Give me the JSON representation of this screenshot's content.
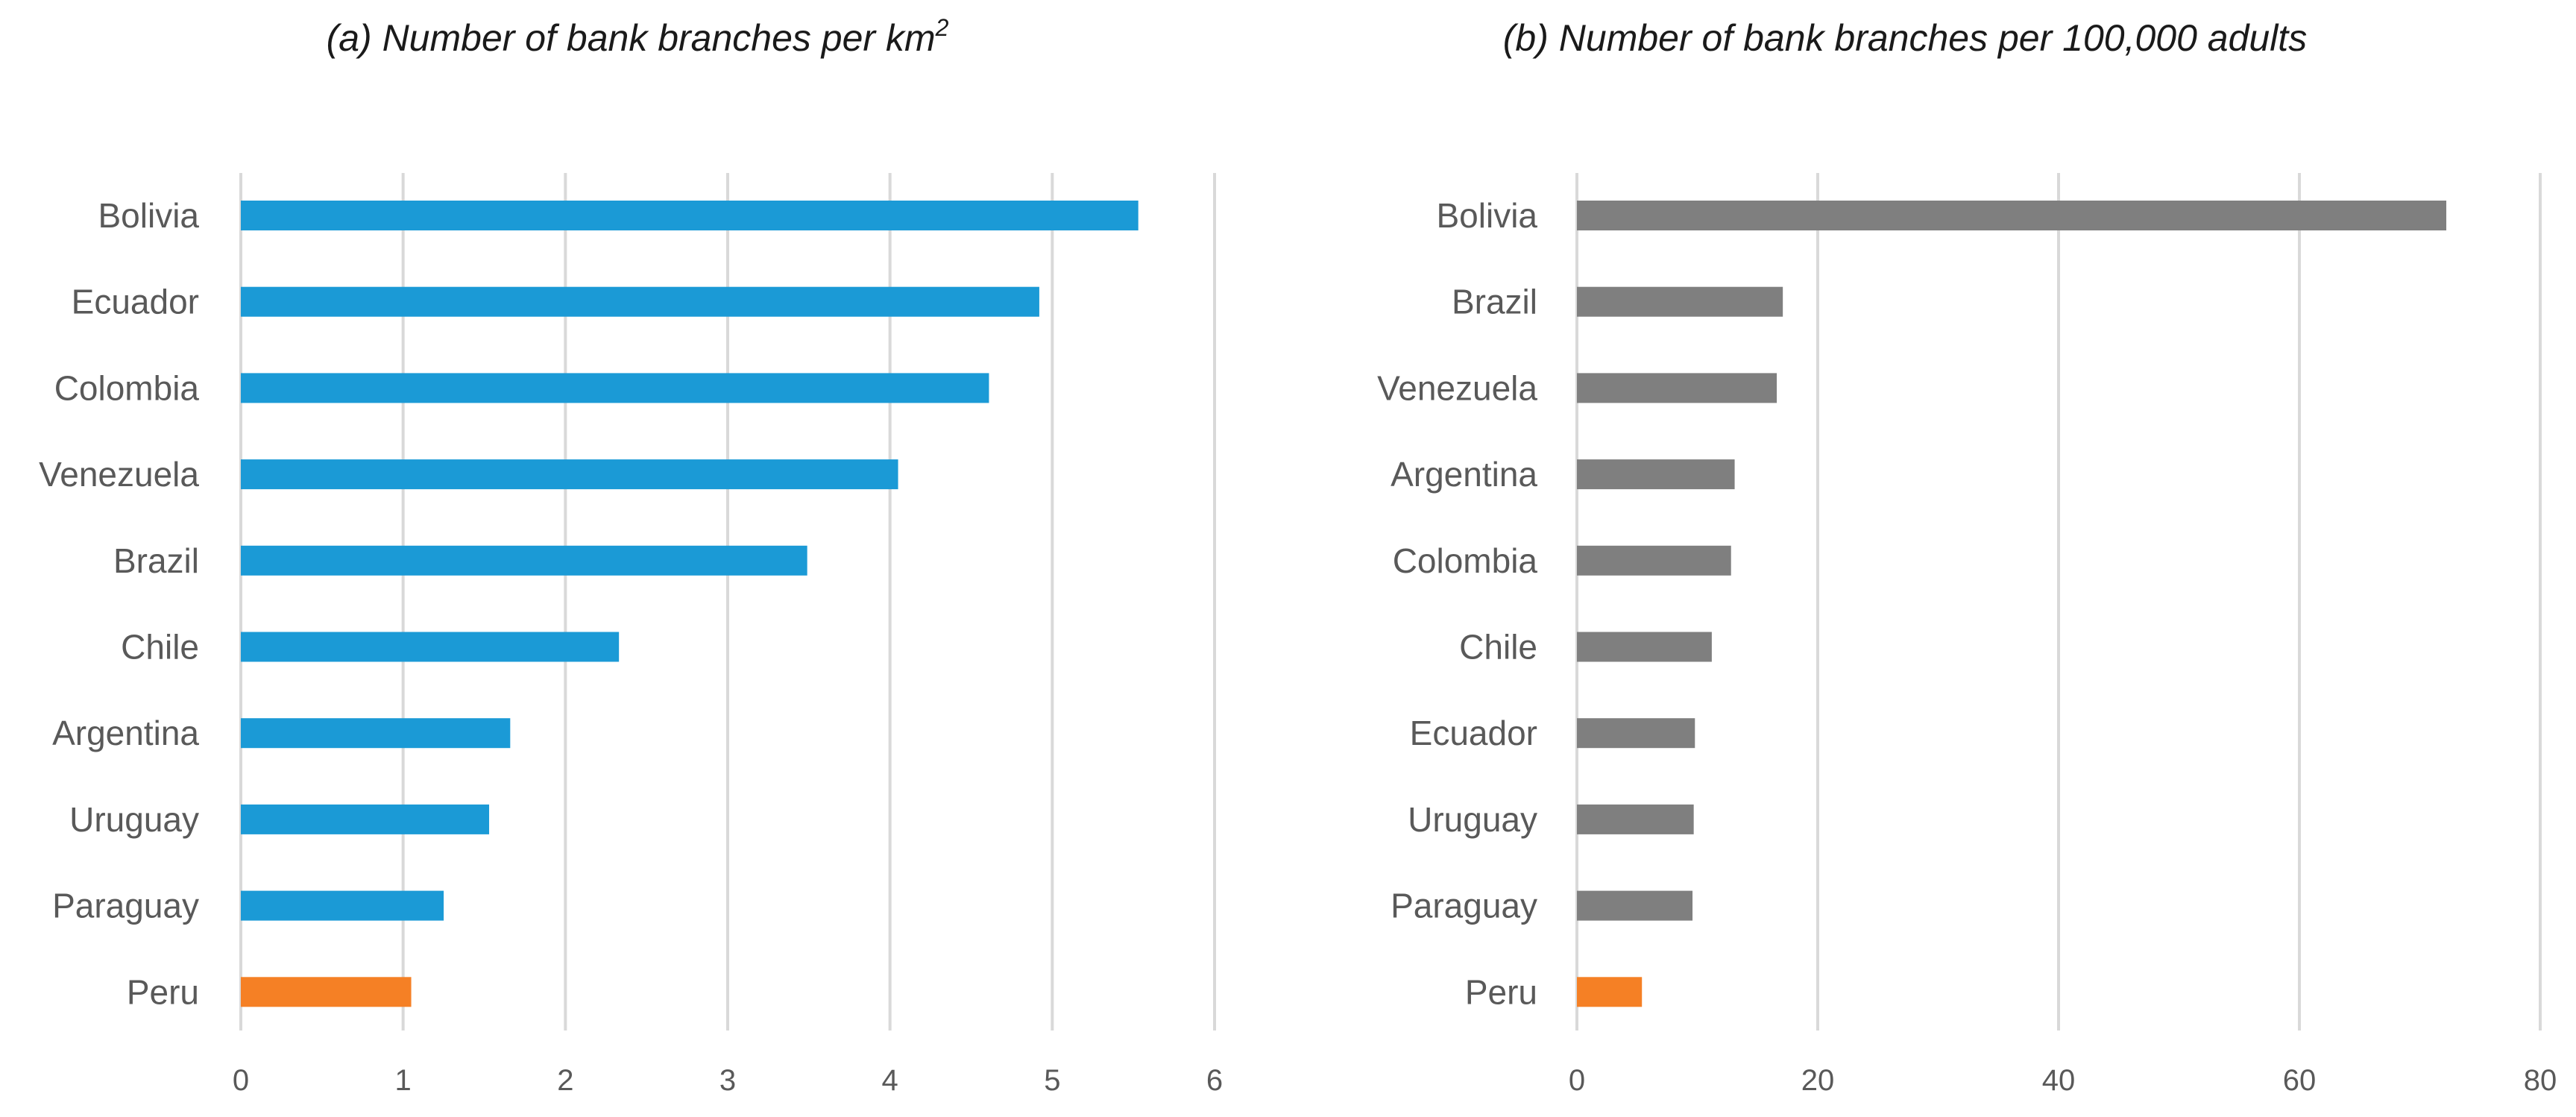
{
  "chart_data": [
    {
      "type": "bar",
      "orientation": "horizontal",
      "title": "(a) Number of bank branches per km",
      "title_superscript": "2",
      "categories": [
        "Bolivia",
        "Ecuador",
        "Colombia",
        "Venezuela",
        "Brazil",
        "Chile",
        "Argentina",
        "Uruguay",
        "Paraguay",
        "Peru"
      ],
      "values": [
        5.53,
        4.92,
        4.61,
        4.05,
        3.49,
        2.33,
        1.66,
        1.53,
        1.25,
        1.05
      ],
      "xlim": [
        0,
        6
      ],
      "xticks": [
        "0",
        "1",
        "2",
        "3",
        "4",
        "5",
        "6"
      ],
      "grid": true,
      "colors": {
        "default": "#1b9ad6",
        "highlight": "#f58025"
      },
      "highlight_category": "Peru"
    },
    {
      "type": "bar",
      "orientation": "horizontal",
      "title": "(b) Number of bank branches per 100,000 adults",
      "categories": [
        "Bolivia",
        "Brazil",
        "Venezuela",
        "Argentina",
        "Colombia",
        "Chile",
        "Ecuador",
        "Uruguay",
        "Paraguay",
        "Peru"
      ],
      "values": [
        72.2,
        17.1,
        16.6,
        13.1,
        12.8,
        11.2,
        9.8,
        9.7,
        9.6,
        5.4
      ],
      "xlim": [
        0,
        80
      ],
      "xticks": [
        "0",
        "20",
        "40",
        "60",
        "80"
      ],
      "grid": true,
      "colors": {
        "default": "#7f7f7f",
        "highlight": "#f58025"
      },
      "highlight_category": "Peru"
    }
  ]
}
